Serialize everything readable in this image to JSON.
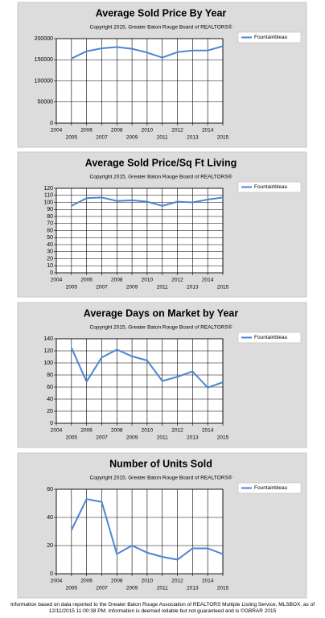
{
  "chart_data": [
    {
      "type": "line",
      "title": "Average Sold Price By Year",
      "subtitle": "Copyright 2015, Greater Baton Rouge Board of REALTORS®",
      "x": [
        2005,
        2006,
        2007,
        2008,
        2009,
        2010,
        2011,
        2012,
        2013,
        2014,
        2015
      ],
      "series": [
        {
          "name": "Fountainbleau",
          "color": "#4a86d4",
          "values": [
            153000,
            170000,
            177000,
            180000,
            176000,
            167000,
            155000,
            168000,
            172000,
            172000,
            182000
          ]
        }
      ],
      "xlim": [
        2004,
        2015
      ],
      "xticks": [
        2004,
        2005,
        2006,
        2007,
        2008,
        2009,
        2010,
        2011,
        2012,
        2013,
        2014,
        2015
      ],
      "ylim": [
        0,
        200000
      ],
      "yticks": [
        0,
        50000,
        100000,
        150000,
        200000
      ],
      "grid": true,
      "legend": "right"
    },
    {
      "type": "line",
      "title": "Average Sold Price/Sq Ft Living",
      "subtitle": "Copyright 2015, Greater Baton Rouge Board of REALTORS®",
      "x": [
        2005,
        2006,
        2007,
        2008,
        2009,
        2010,
        2011,
        2012,
        2013,
        2014,
        2015
      ],
      "series": [
        {
          "name": "Fountainbleau",
          "color": "#4a86d4",
          "values": [
            95,
            106,
            107,
            102,
            103,
            101,
            95,
            101,
            100,
            104,
            107
          ]
        }
      ],
      "xlim": [
        2004,
        2015
      ],
      "xticks": [
        2004,
        2005,
        2006,
        2007,
        2008,
        2009,
        2010,
        2011,
        2012,
        2013,
        2014,
        2015
      ],
      "ylim": [
        0,
        120
      ],
      "yticks": [
        0,
        10,
        20,
        30,
        40,
        50,
        60,
        70,
        80,
        90,
        100,
        110,
        120
      ],
      "grid": true,
      "legend": "right"
    },
    {
      "type": "line",
      "title": "Average Days on Market by Year",
      "subtitle": "Copyright 2015, Greater Baton Rouge Board of REALTORS®",
      "x": [
        2005,
        2006,
        2007,
        2008,
        2009,
        2010,
        2011,
        2012,
        2013,
        2014,
        2015
      ],
      "series": [
        {
          "name": "Fountainbleau",
          "color": "#4a86d4",
          "values": [
            125,
            69,
            109,
            122,
            111,
            104,
            70,
            77,
            86,
            59,
            68
          ]
        }
      ],
      "xlim": [
        2004,
        2015
      ],
      "xticks": [
        2004,
        2005,
        2006,
        2007,
        2008,
        2009,
        2010,
        2011,
        2012,
        2013,
        2014,
        2015
      ],
      "ylim": [
        0,
        140
      ],
      "yticks": [
        0,
        20,
        40,
        60,
        80,
        100,
        120,
        140
      ],
      "grid": true,
      "legend": "right"
    },
    {
      "type": "line",
      "title": "Number of Units Sold",
      "subtitle": "Copyright 2015, Greater Baton Rouge Board of REALTORS®",
      "x": [
        2005,
        2006,
        2007,
        2008,
        2009,
        2010,
        2011,
        2012,
        2013,
        2014,
        2015
      ],
      "series": [
        {
          "name": "Fountainbleau",
          "color": "#4a86d4",
          "values": [
            31,
            53,
            51,
            14,
            20,
            15,
            12,
            10,
            18,
            18,
            14
          ]
        }
      ],
      "xlim": [
        2004,
        2015
      ],
      "xticks": [
        2004,
        2005,
        2006,
        2007,
        2008,
        2009,
        2010,
        2011,
        2012,
        2013,
        2014,
        2015
      ],
      "ylim": [
        0,
        60
      ],
      "yticks": [
        0,
        20,
        40,
        60
      ],
      "grid": true,
      "legend": "right"
    }
  ],
  "footer": "Information based on data reported to the Greater Baton Rouge Association of REALTORS Multiple Listing Service, MLSBOX, as of 12/11/2015 11:00:38 PM. Information is deemed reliable but not guaranteed and is ©GBRAR 2015"
}
